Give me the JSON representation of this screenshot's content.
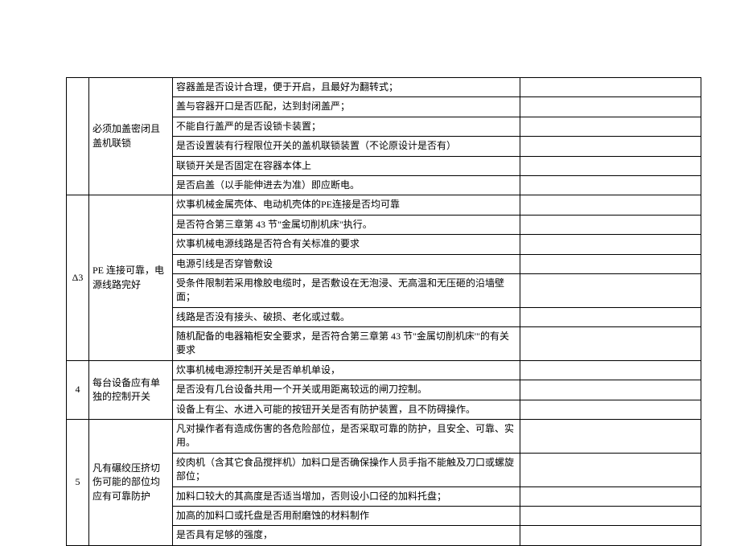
{
  "rows": [
    {
      "idx": "",
      "spec": "必须加盖密闭且盖机联锁",
      "spec_rowspan": 6,
      "idx_rowspan": 6,
      "check": "容器盖是否设计合理，便于开启，且最好为翻转式；"
    },
    {
      "check": "盖与容器开口是否匹配，达到封闭盖严；"
    },
    {
      "check": "不能自行盖严的是否设锁卡装置；"
    },
    {
      "check": "是否设置装有行程限位开关的盖机联锁装置（不论原设计是否有）"
    },
    {
      "check": "联锁开关是否固定在容器本体上"
    },
    {
      "check": "是否启盖（以手能伸进去为准）即应断电。"
    },
    {
      "idx": "Δ3",
      "spec": "PE 连接可靠，电源线路完好",
      "spec_rowspan": 7,
      "idx_rowspan": 7,
      "check": "炊事机械金属壳体、电动机壳体的PE连接是否均可靠"
    },
    {
      "check": "是否符合第三章第 43 节\"金属切削机床\"执行。"
    },
    {
      "check": "炊事机械电源线路是否符合有关标准的要求"
    },
    {
      "check": "电源引线是否穿管敷设"
    },
    {
      "check": "受条件限制若采用橡胶电缆时，是否敷设在无泡浸、无高温和无压砸的沿墙壁面；"
    },
    {
      "check": "线路是否没有接头、破损、老化或过载。"
    },
    {
      "check": "随机配备的电器箱柜安全要求，是否符合第三章第 43 节\"金属切削机床'\"的有关要求"
    },
    {
      "idx": "4",
      "spec": "每台设备应有单独的控制开关",
      "spec_rowspan": 3,
      "idx_rowspan": 3,
      "check": "炊事机械电源控制开关是否单机单设，"
    },
    {
      "check": "是否没有几台设备共用一个开关或用距离较远的闸刀控制。"
    },
    {
      "check": "设备上有尘、水进入可能的按钮开关是否有防护装置，且不防碍操作。"
    },
    {
      "idx": "5",
      "spec": "凡有碾绞压挤切伤可能的部位均应有可靠防护",
      "spec_rowspan": 5,
      "idx_rowspan": 5,
      "check": "凡对操作者有造成伤害的各危险部位，是否采取可靠的防护，且安全、可靠、实用。"
    },
    {
      "check": "绞肉机（含其它食品搅拌机）加料口是否确保操作人员手指不能触及刀口或螺旋部位；"
    },
    {
      "check": "加料口较大的其高度是否适当增加，否则设小口径的加料托盘；"
    },
    {
      "check": "加高的加料口或托盘是否用耐磨蚀的材料制作"
    },
    {
      "check": "是否具有足够的强度，"
    }
  ]
}
